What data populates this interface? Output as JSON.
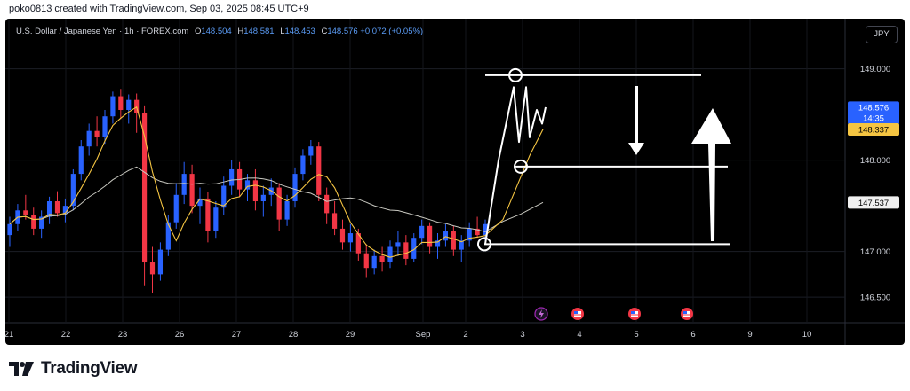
{
  "credit": "poko0813 created with TradingView.com, Sep 03, 2025 08:45 UTC+9",
  "legend": {
    "symbol": "U.S. Dollar / Japanese Yen · 1h · FOREX.com",
    "open_label": "O",
    "open": "148.504",
    "high_label": "H",
    "high": "148.581",
    "low_label": "L",
    "low": "148.453",
    "close_label": "C",
    "close": "148.576",
    "change": "+0.072 (+0.05%)"
  },
  "currency_button": "JPY",
  "brand": {
    "name": "TradingView"
  },
  "colors": {
    "up": "#2962ff",
    "down": "#f23645",
    "ma_fast": "#f5c542",
    "ma_slow": "#c8c8c0",
    "drawing": "#ffffff",
    "price_tag": "#2962ff",
    "ma_tag": "#f5c542"
  },
  "event_icons": [
    "lightning-icon",
    "us-flag-icon",
    "us-flag-icon",
    "us-flag-icon"
  ],
  "chart_data": {
    "type": "candlestick",
    "symbol": "USDJPY",
    "interval": "1h",
    "y_ticks": [
      "149.000",
      "148.000",
      "147.000",
      "146.500"
    ],
    "x_ticks": [
      "21",
      "22",
      "23",
      "26",
      "27",
      "28",
      "29",
      "Sep",
      "2",
      "3",
      "4",
      "5",
      "6",
      "9",
      "10"
    ],
    "ylim": [
      146.22,
      149.55
    ],
    "price_tags": [
      {
        "label": "148.576",
        "sub": "14:35",
        "price": 148.576,
        "kind": "last"
      },
      {
        "label": "148.337",
        "price": 148.337,
        "kind": "ma"
      },
      {
        "label": "147.537",
        "price": 147.537,
        "kind": "ma_slow"
      }
    ],
    "levels": [
      148.93,
      147.93,
      147.08
    ],
    "ohlc": [
      [
        147.18,
        147.38,
        147.05,
        147.3
      ],
      [
        147.3,
        147.52,
        147.22,
        147.45
      ],
      [
        147.45,
        147.62,
        147.35,
        147.4
      ],
      [
        147.4,
        147.48,
        147.18,
        147.25
      ],
      [
        147.25,
        147.45,
        147.15,
        147.38
      ],
      [
        147.38,
        147.6,
        147.3,
        147.55
      ],
      [
        147.55,
        147.66,
        147.38,
        147.42
      ],
      [
        147.42,
        147.58,
        147.32,
        147.5
      ],
      [
        147.5,
        147.9,
        147.45,
        147.85
      ],
      [
        147.85,
        148.22,
        147.78,
        148.15
      ],
      [
        148.15,
        148.4,
        148.05,
        148.32
      ],
      [
        148.32,
        148.48,
        148.15,
        148.25
      ],
      [
        148.25,
        148.55,
        148.18,
        148.48
      ],
      [
        148.48,
        148.75,
        148.4,
        148.7
      ],
      [
        148.7,
        148.78,
        148.45,
        148.55
      ],
      [
        148.55,
        148.72,
        148.4,
        148.66
      ],
      [
        148.66,
        148.73,
        148.3,
        148.52
      ],
      [
        148.52,
        148.6,
        146.62,
        146.88
      ],
      [
        146.88,
        147.05,
        146.55,
        146.75
      ],
      [
        146.75,
        147.1,
        146.68,
        147.02
      ],
      [
        147.02,
        147.4,
        146.95,
        147.32
      ],
      [
        147.32,
        147.75,
        147.25,
        147.62
      ],
      [
        147.62,
        147.98,
        147.52,
        147.85
      ],
      [
        147.85,
        147.95,
        147.42,
        147.5
      ],
      [
        147.5,
        147.7,
        147.3,
        147.58
      ],
      [
        147.58,
        147.65,
        147.1,
        147.22
      ],
      [
        147.22,
        147.55,
        147.15,
        147.48
      ],
      [
        147.48,
        147.82,
        147.4,
        147.72
      ],
      [
        147.72,
        148.0,
        147.62,
        147.9
      ],
      [
        147.9,
        147.98,
        147.6,
        147.68
      ],
      [
        147.68,
        147.85,
        147.55,
        147.78
      ],
      [
        147.78,
        147.9,
        147.45,
        147.55
      ],
      [
        147.55,
        147.72,
        147.38,
        147.62
      ],
      [
        147.62,
        147.8,
        147.5,
        147.7
      ],
      [
        147.7,
        147.75,
        147.22,
        147.35
      ],
      [
        147.35,
        147.62,
        147.28,
        147.55
      ],
      [
        147.55,
        147.92,
        147.48,
        147.85
      ],
      [
        147.85,
        148.12,
        147.78,
        148.05
      ],
      [
        148.05,
        148.22,
        147.95,
        148.15
      ],
      [
        148.15,
        148.2,
        147.55,
        147.62
      ],
      [
        147.62,
        147.7,
        147.3,
        147.42
      ],
      [
        147.42,
        147.55,
        147.18,
        147.25
      ],
      [
        147.25,
        147.35,
        147.02,
        147.1
      ],
      [
        147.1,
        147.3,
        147.0,
        147.2
      ],
      [
        147.2,
        147.25,
        146.9,
        146.98
      ],
      [
        146.98,
        147.08,
        146.72,
        146.82
      ],
      [
        146.82,
        147.02,
        146.75,
        146.95
      ],
      [
        146.95,
        147.05,
        146.78,
        146.88
      ],
      [
        146.88,
        147.12,
        146.82,
        147.05
      ],
      [
        147.05,
        147.22,
        146.95,
        147.1
      ],
      [
        147.1,
        147.18,
        146.85,
        146.92
      ],
      [
        146.92,
        147.2,
        146.88,
        147.15
      ],
      [
        147.15,
        147.35,
        147.08,
        147.28
      ],
      [
        147.28,
        147.32,
        146.98,
        147.05
      ],
      [
        147.05,
        147.2,
        146.92,
        147.12
      ],
      [
        147.12,
        147.3,
        147.05,
        147.22
      ],
      [
        147.22,
        147.28,
        146.95,
        147.02
      ],
      [
        147.02,
        147.18,
        146.88,
        147.12
      ],
      [
        147.12,
        147.32,
        147.05,
        147.25
      ],
      [
        147.25,
        147.38,
        147.15,
        147.18
      ],
      [
        147.18,
        147.35,
        147.1,
        147.3
      ]
    ],
    "drawing_path": [
      148.0,
      148.8,
      148.2,
      148.8,
      148.25,
      148.55,
      148.4,
      148.58
    ],
    "annotations": [
      {
        "type": "arrow",
        "direction": "down"
      },
      {
        "type": "arrow",
        "direction": "up"
      }
    ]
  }
}
